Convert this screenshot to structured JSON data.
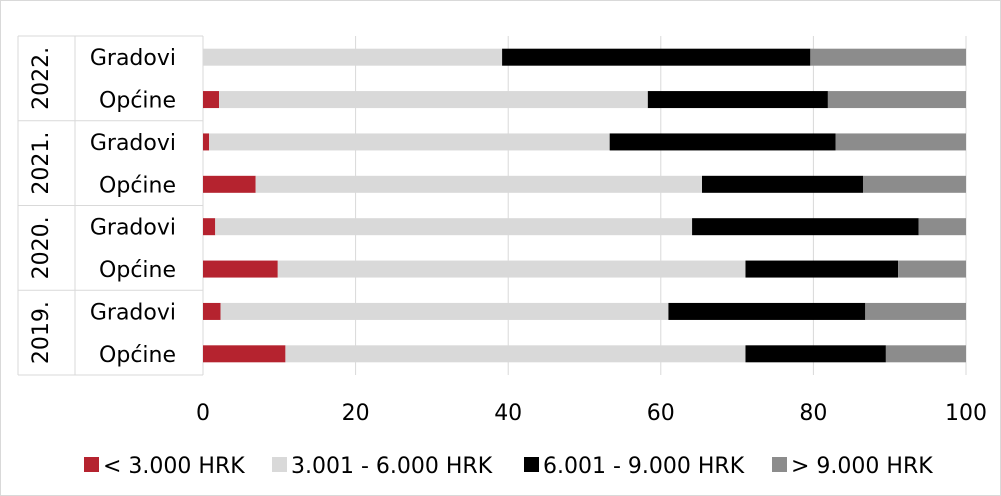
{
  "chart_data": {
    "type": "bar",
    "orientation": "horizontal",
    "stacked": true,
    "groups": [
      {
        "label": "2022.",
        "categories": [
          "Gradovi",
          "Općine"
        ]
      },
      {
        "label": "2021.",
        "categories": [
          "Gradovi",
          "Općine"
        ]
      },
      {
        "label": "2020.",
        "categories": [
          "Gradovi",
          "Općine"
        ]
      },
      {
        "label": "2019.",
        "categories": [
          "Gradovi",
          "Općine"
        ]
      }
    ],
    "categories": [
      "2022. Gradovi",
      "2022. Općine",
      "2021. Gradovi",
      "2021. Općine",
      "2020. Gradovi",
      "2020. Općine",
      "2019. Gradovi",
      "2019. Općine"
    ],
    "series": [
      {
        "name": "< 3.000 HRK",
        "color": "#b5232f",
        "values": [
          0,
          2.1,
          0.8,
          6.9,
          1.6,
          9.8,
          2.3,
          10.8
        ]
      },
      {
        "name": "3.001 - 6.000 HRK",
        "color": "#d9d9d9",
        "values": [
          39.2,
          56.2,
          52.5,
          58.5,
          62.5,
          61.3,
          58.7,
          60.3
        ]
      },
      {
        "name": "6.001 - 9.000 HRK",
        "color": "#000000",
        "values": [
          40.4,
          23.6,
          29.6,
          21.1,
          29.7,
          20.0,
          25.8,
          18.4
        ]
      },
      {
        "name": "> 9.000 HRK",
        "color": "#8c8c8c",
        "values": [
          20.4,
          18.1,
          17.1,
          13.5,
          6.2,
          8.9,
          13.2,
          10.5
        ]
      }
    ],
    "xlim": [
      0,
      100
    ],
    "xticks": [
      "0",
      "20",
      "40",
      "60",
      "80",
      "100"
    ],
    "grid": true,
    "legend": "bottom"
  }
}
